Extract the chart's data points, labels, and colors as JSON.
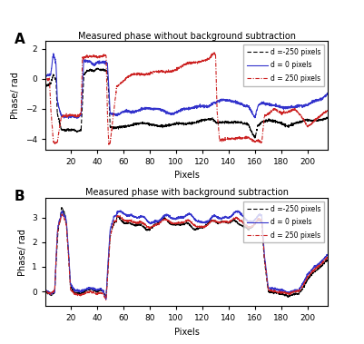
{
  "title_A": "Measured phase without background subtraction",
  "title_B": "Measured phase with background subtraction",
  "xlabel": "Pixels",
  "ylabel": "Phase/ rad",
  "label_A": "A",
  "label_B": "B",
  "legend_labels": [
    "d =-250 pixels",
    "d = 0 pixels",
    "d = 250 pixels"
  ],
  "colors": [
    "#000000",
    "#3333cc",
    "#cc2222"
  ],
  "xlim": [
    1,
    215
  ],
  "ylim_A": [
    -4.7,
    2.5
  ],
  "ylim_B": [
    -0.6,
    3.8
  ],
  "yticks_A": [
    -4,
    -2,
    0,
    2
  ],
  "yticks_B": [
    0,
    1,
    2,
    3
  ],
  "xticks": [
    20,
    40,
    60,
    80,
    100,
    120,
    140,
    160,
    180,
    200
  ]
}
